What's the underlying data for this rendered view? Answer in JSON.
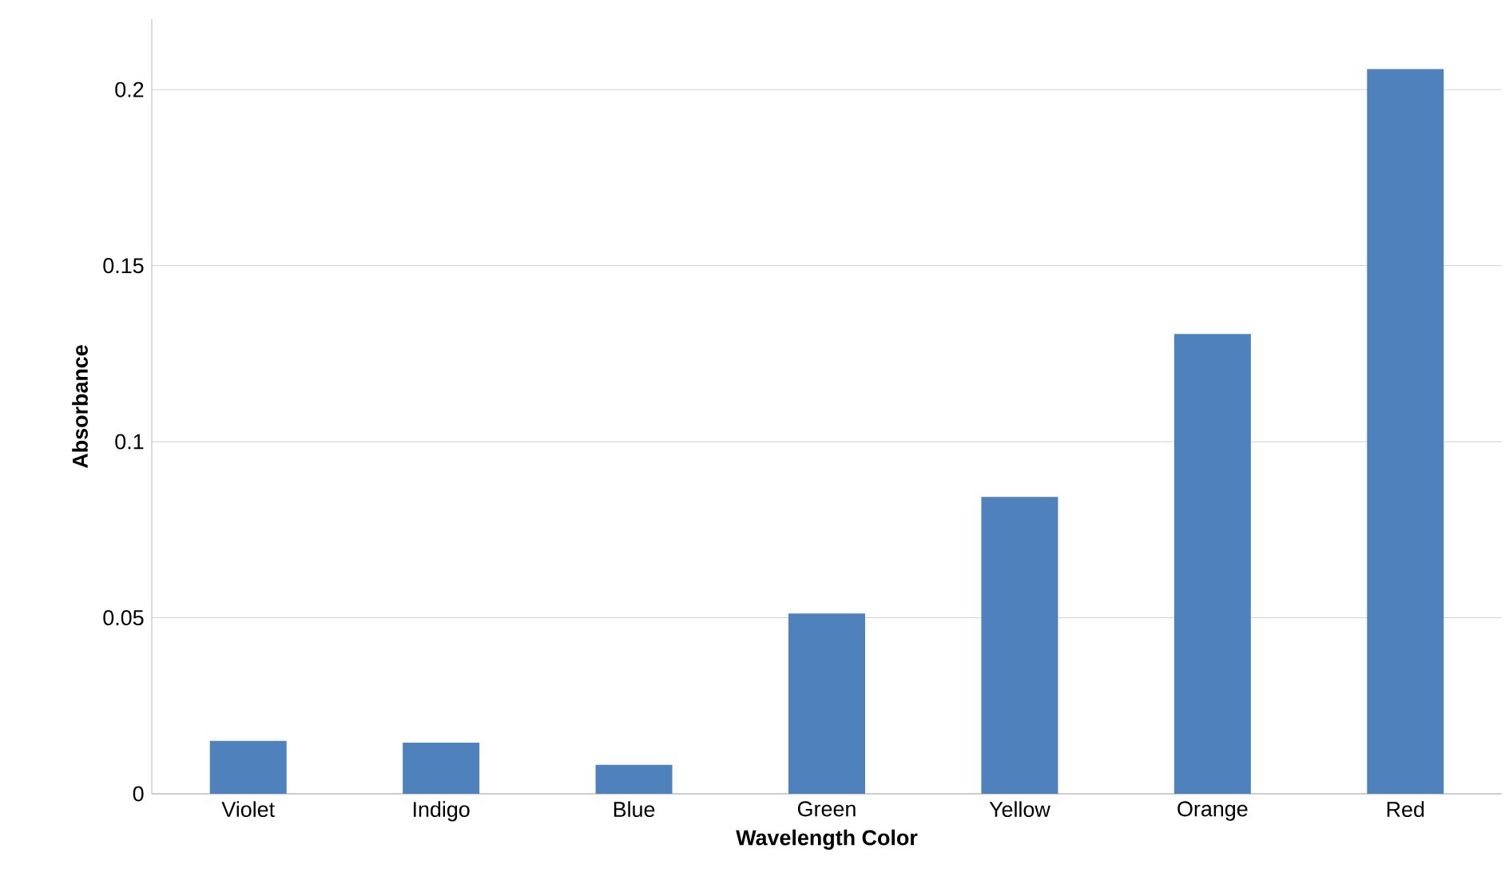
{
  "chart_data": {
    "type": "bar",
    "xlabel": "Wavelength Color",
    "ylabel": "Absorbance",
    "categories": [
      "Violet",
      "Indigo",
      "Blue",
      "Green",
      "Yellow",
      "Orange",
      "Red"
    ],
    "values": [
      0.015,
      0.0145,
      0.0082,
      0.0512,
      0.0843,
      0.1306,
      0.2058
    ],
    "color": "#4f81bd",
    "ylim": [
      0,
      0.22
    ],
    "yticks": [
      0,
      0.05,
      0.1,
      0.15,
      0.2
    ],
    "grid": "y"
  }
}
